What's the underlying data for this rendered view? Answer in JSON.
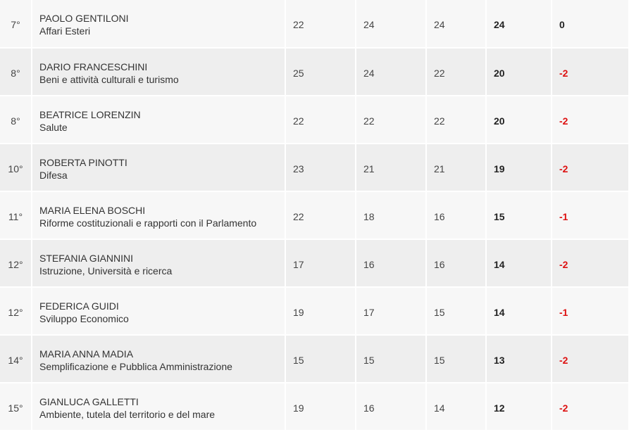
{
  "rows": [
    {
      "rank": "7°",
      "name": "PAOLO GENTILONI",
      "ministry": "Affari Esteri",
      "v1": "22",
      "v2": "24",
      "v3": "24",
      "current": "24",
      "delta": "0",
      "negative": false
    },
    {
      "rank": "8°",
      "name": "DARIO FRANCESCHINI",
      "ministry": "Beni e attività culturali e turismo",
      "v1": "25",
      "v2": "24",
      "v3": "22",
      "current": "20",
      "delta": "-2",
      "negative": true
    },
    {
      "rank": "8°",
      "name": "BEATRICE LORENZIN",
      "ministry": "Salute",
      "v1": "22",
      "v2": "22",
      "v3": "22",
      "current": "20",
      "delta": "-2",
      "negative": true
    },
    {
      "rank": "10°",
      "name": "ROBERTA PINOTTI",
      "ministry": "Difesa",
      "v1": "23",
      "v2": "21",
      "v3": "21",
      "current": "19",
      "delta": "-2",
      "negative": true
    },
    {
      "rank": "11°",
      "name": "MARIA ELENA BOSCHI",
      "ministry": "Riforme costituzionali e rapporti con il Parlamento",
      "v1": "22",
      "v2": "18",
      "v3": "16",
      "current": "15",
      "delta": "-1",
      "negative": true
    },
    {
      "rank": "12°",
      "name": "STEFANIA GIANNINI",
      "ministry": "Istruzione, Università e ricerca",
      "v1": "17",
      "v2": "16",
      "v3": "16",
      "current": "14",
      "delta": "-2",
      "negative": true
    },
    {
      "rank": "12°",
      "name": "FEDERICA GUIDI",
      "ministry": "Sviluppo Economico",
      "v1": "19",
      "v2": "17",
      "v3": "15",
      "current": "14",
      "delta": "-1",
      "negative": true
    },
    {
      "rank": "14°",
      "name": "MARIA ANNA MADIA",
      "ministry": "Semplificazione e Pubblica Amministrazione",
      "v1": "15",
      "v2": "15",
      "v3": "15",
      "current": "13",
      "delta": "-2",
      "negative": true
    },
    {
      "rank": "15°",
      "name": "GIANLUCA GALLETTI",
      "ministry": "Ambiente, tutela del territorio e del mare",
      "v1": "19",
      "v2": "16",
      "v3": "14",
      "current": "12",
      "delta": "-2",
      "negative": true
    }
  ],
  "colors": {
    "negative": "#dd1111",
    "row_odd": "#f7f7f7",
    "row_even": "#eeeeee"
  }
}
